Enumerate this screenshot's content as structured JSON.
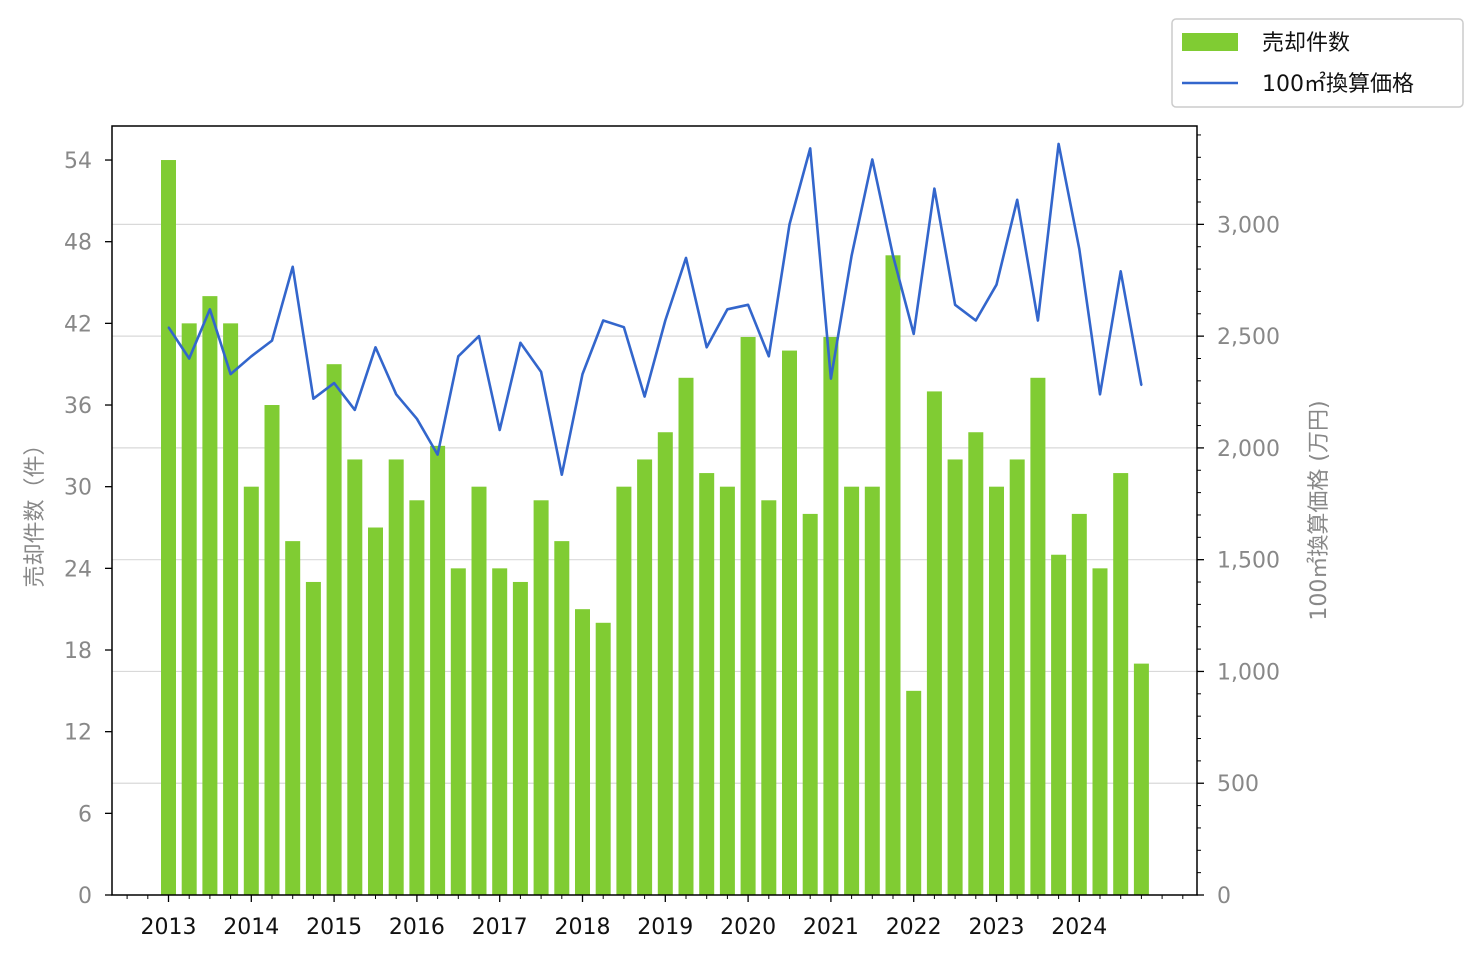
{
  "chart_data": {
    "type": "bar+line",
    "x_axis": {
      "tick_labels": [
        "2013",
        "2014",
        "2015",
        "2016",
        "2017",
        "2018",
        "2019",
        "2020",
        "2021",
        "2022",
        "2023",
        "2024"
      ]
    },
    "y_left": {
      "label": "売却件数（件）",
      "ylim": [
        0,
        56.5
      ],
      "ticks": [
        0,
        6,
        12,
        18,
        24,
        30,
        36,
        42,
        48,
        54
      ]
    },
    "y_right": {
      "label": "100㎡換算価格 (万円)",
      "ylim": [
        0,
        3440
      ],
      "ticks": [
        0,
        500,
        1000,
        1500,
        2000,
        2500,
        3000
      ],
      "tick_labels": [
        "0",
        "500",
        "1,000",
        "1,500",
        "2,000",
        "2,500",
        "3,000"
      ]
    },
    "grid": "horizontal (right axis)",
    "legend": {
      "position": "top-right",
      "entries": [
        {
          "label": "売却件数",
          "color": "#80cc33",
          "kind": "bar"
        },
        {
          "label": "100㎡換算価格",
          "color": "#3366cc",
          "kind": "line"
        }
      ]
    },
    "x": [
      "2013Q1",
      "2013Q2",
      "2013Q3",
      "2013Q4",
      "2014Q1",
      "2014Q2",
      "2014Q3",
      "2014Q4",
      "2015Q1",
      "2015Q2",
      "2015Q3",
      "2015Q4",
      "2016Q1",
      "2016Q2",
      "2016Q3",
      "2016Q4",
      "2017Q1",
      "2017Q2",
      "2017Q3",
      "2017Q4",
      "2018Q1",
      "2018Q2",
      "2018Q3",
      "2018Q4",
      "2019Q1",
      "2019Q2",
      "2019Q3",
      "2019Q4",
      "2020Q1",
      "2020Q2",
      "2020Q3",
      "2020Q4",
      "2021Q1",
      "2021Q2",
      "2021Q3",
      "2021Q4",
      "2022Q1",
      "2022Q2",
      "2022Q3",
      "2022Q4",
      "2023Q1",
      "2023Q2",
      "2023Q3",
      "2023Q4",
      "2024Q1",
      "2024Q2",
      "2024Q3",
      "2024Q4"
    ],
    "series": [
      {
        "name": "売却件数",
        "axis": "left",
        "color": "#80cc33",
        "values": [
          54,
          42,
          44,
          42,
          30,
          36,
          26,
          23,
          39,
          32,
          27,
          32,
          29,
          33,
          24,
          30,
          24,
          23,
          29,
          26,
          21,
          20,
          30,
          32,
          34,
          38,
          31,
          30,
          41,
          29,
          40,
          28,
          41,
          30,
          30,
          47,
          15,
          37,
          32,
          34,
          30,
          32,
          38,
          25,
          28,
          24,
          31,
          17
        ]
      },
      {
        "name": "100㎡換算価格",
        "axis": "right",
        "color": "#3366cc",
        "values": [
          2540,
          2400,
          2620,
          2330,
          2410,
          2480,
          2810,
          2220,
          2290,
          2170,
          2450,
          2240,
          2130,
          1970,
          2410,
          2500,
          2080,
          2470,
          2340,
          1880,
          2330,
          2570,
          2540,
          2230,
          2570,
          2850,
          2450,
          2620,
          2640,
          2410,
          3000,
          3340,
          2310,
          2860,
          3290,
          2860,
          2510,
          3160,
          2640,
          2570,
          2730,
          3110,
          2570,
          3360,
          2890,
          2240,
          2790,
          2280
        ]
      }
    ]
  }
}
